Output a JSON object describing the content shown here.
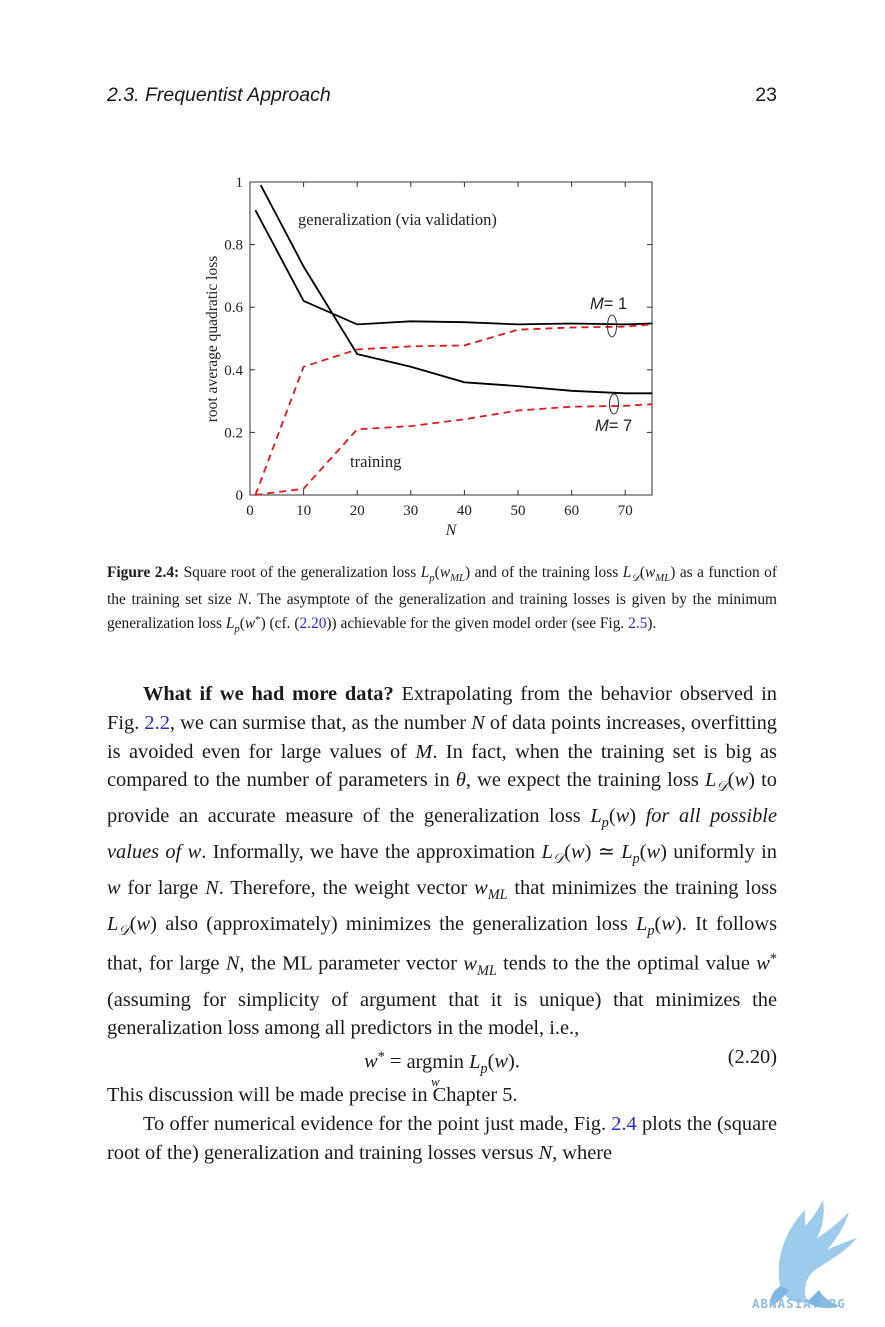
{
  "header": {
    "section": "2.3.   Frequentist Approach",
    "page_number": "23"
  },
  "chart_data": {
    "type": "line",
    "xlabel": "N",
    "ylabel": "root average quadratic loss",
    "xlim": [
      0,
      75
    ],
    "ylim": [
      0,
      1
    ],
    "xticks": [
      "0",
      "10",
      "20",
      "30",
      "40",
      "50",
      "60",
      "70"
    ],
    "yticks": [
      "0",
      "0.2",
      "0.4",
      "0.6",
      "0.8",
      "1"
    ],
    "grid": false,
    "series": [
      {
        "group": "generalization",
        "model": "M=1",
        "color": "#000000",
        "style": "solid",
        "x": [
          1,
          10,
          20,
          30,
          40,
          50,
          60,
          70,
          75
        ],
        "y": [
          0.91,
          0.62,
          0.545,
          0.555,
          0.552,
          0.545,
          0.548,
          0.545,
          0.548
        ]
      },
      {
        "group": "generalization",
        "model": "M=7",
        "color": "#000000",
        "style": "solid",
        "x": [
          2,
          10,
          20,
          30,
          40,
          50,
          60,
          70,
          75
        ],
        "y": [
          0.99,
          0.73,
          0.45,
          0.41,
          0.36,
          0.348,
          0.333,
          0.325,
          0.325
        ]
      },
      {
        "group": "training",
        "model": "M=1",
        "color": "#e0181b",
        "style": "dashed",
        "x": [
          1,
          10,
          20,
          30,
          40,
          50,
          60,
          70,
          75
        ],
        "y": [
          0.0,
          0.41,
          0.465,
          0.475,
          0.478,
          0.528,
          0.535,
          0.538,
          0.545
        ]
      },
      {
        "group": "training",
        "model": "M=7",
        "color": "#e0181b",
        "style": "dashed",
        "x": [
          1,
          10,
          20,
          30,
          40,
          50,
          60,
          70,
          75
        ],
        "y": [
          0.0,
          0.02,
          0.21,
          0.22,
          0.242,
          0.27,
          0.282,
          0.285,
          0.29
        ]
      }
    ],
    "annotations": {
      "generalization": "generalization (via validation)",
      "training": "training",
      "m1_prefix": "M",
      "m1_suffix": "= 1",
      "m7_prefix": "M",
      "m7_suffix": "= 7"
    }
  },
  "caption": {
    "label": "Figure 2.4:",
    "t1": " Square root of the generalization loss ",
    "t2": " and of the training loss ",
    "t3": " as a function of the training set size ",
    "t4": ". The asymptote of the generalization and training losses is given by the minimum generalization loss ",
    "t5": " (cf. (",
    "ref_eq": "2.20",
    "t6": ")) achievable for the given model order (see Fig. ",
    "ref_fig": "2.5",
    "t7": ")."
  },
  "body": {
    "p1_bold": "What if we had more data?",
    "p1_a": " Extrapolating from the behavior observed in Fig. ",
    "p1_ref": "2.2",
    "p1_b": ", we can surmise that, as the number ",
    "p1_c": " of data points increases, overfitting is avoided even for large values of ",
    "p1_d": ". In fact, when the training set is big as compared to the number of parameters in ",
    "p1_e": ", we expect the training loss ",
    "p1_f": " to provide an accurate measure of the generalization loss ",
    "p1_g_italic": "for all possible values of",
    "p1_h": ". Informally, we have the approximation ",
    "p1_i": " uniformly in ",
    "p1_j": " for large ",
    "p1_k": ". Therefore, the weight vector ",
    "p1_l": " that minimizes the training loss ",
    "p1_m": " also (approximately) minimizes the generalization loss ",
    "p1_n": ". It follows that, for large ",
    "p1_o": ", the ML parameter vector ",
    "p1_p": " tends to the the optimal value ",
    "p1_q": " (assuming for simplicity of argument that it is unique) that minimizes the generalization loss among all predictors in the model, i.e.,",
    "eq_argmin": "argmin",
    "eq_under": "w",
    "eq_number": "(2.20)",
    "p2": "This discussion will be made precise in Chapter 5.",
    "p3_a": "To offer numerical evidence for the point just made, Fig. ",
    "p3_ref": "2.4",
    "p3_b": " plots the (square root of the) generalization and training losses versus ",
    "p3_c": ", where"
  },
  "watermark": {
    "text": "ABNASIA.ORG"
  }
}
